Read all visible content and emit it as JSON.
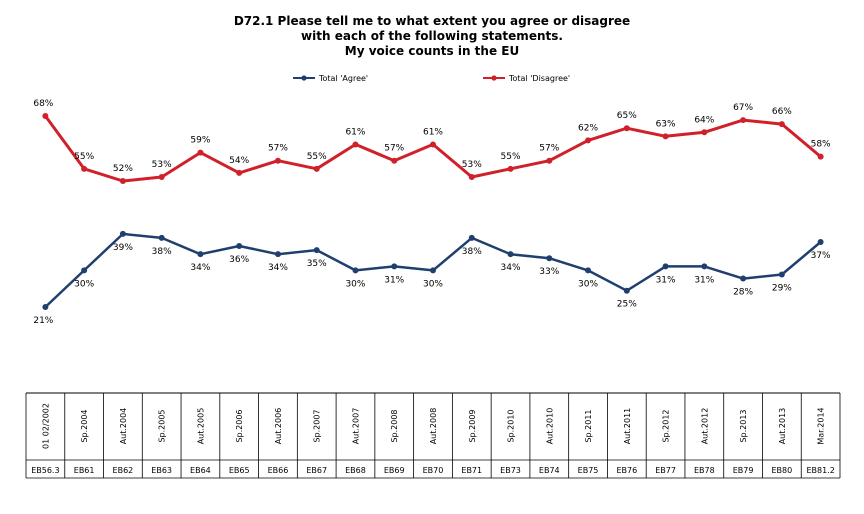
{
  "chart_data": {
    "type": "line",
    "title_lines": [
      "D72.1 Please tell me to what extent you agree or disagree",
      "with each of the following statements.",
      "My voice counts in the EU"
    ],
    "categories": [
      "01 02/2002",
      "Sp.2004",
      "Aut.2004",
      "Sp.2005",
      "Aut.2005",
      "Sp.2006",
      "Aut.2006",
      "Sp.2007",
      "Aut.2007",
      "Sp.2008",
      "Aut.2008",
      "Sp.2009",
      "Sp.2010",
      "Aut.2010",
      "Sp.2011",
      "Aut.2011",
      "Sp.2012",
      "Aut.2012",
      "Sp.2013",
      "Aut.2013",
      "Mar.2014"
    ],
    "codes": [
      "EB56.3",
      "EB61",
      "EB62",
      "EB63",
      "EB64",
      "EB65",
      "EB66",
      "EB67",
      "EB68",
      "EB69",
      "EB70",
      "EB71",
      "EB73",
      "EB74",
      "EB75",
      "EB76",
      "EB77",
      "EB78",
      "EB79",
      "EB80",
      "EB81.2"
    ],
    "series": [
      {
        "name": "Total 'Agree'",
        "color": "#1f3f6e",
        "values": [
          21,
          30,
          39,
          38,
          34,
          36,
          34,
          35,
          30,
          31,
          30,
          38,
          34,
          33,
          30,
          25,
          31,
          31,
          28,
          29,
          37
        ]
      },
      {
        "name": "Total 'Disagree'",
        "color": "#d0202a",
        "values": [
          68,
          55,
          52,
          53,
          59,
          54,
          57,
          55,
          61,
          57,
          61,
          53,
          55,
          57,
          62,
          65,
          63,
          64,
          67,
          66,
          58
        ]
      }
    ],
    "value_suffix": "%",
    "legend_position": "top-center",
    "grid": false
  }
}
